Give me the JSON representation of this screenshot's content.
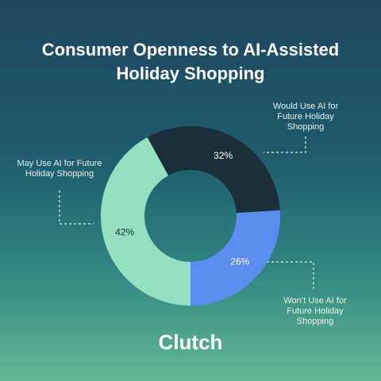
{
  "chart_data": {
    "type": "donut",
    "title": "Consumer Openness to AI-Assisted Holiday Shopping",
    "categories": [
      "Would Use AI for Future Holiday Shopping",
      "Won’t Use AI for Future Holiday Shopping",
      "May Use AI for Future Holiday Shopping"
    ],
    "values": [
      32,
      26,
      42
    ],
    "value_labels": [
      "32%",
      "26%",
      "42%"
    ],
    "colors": [
      "#1b2f3a",
      "#5b8def",
      "#96e0c2"
    ]
  },
  "brand": "Clutch"
}
